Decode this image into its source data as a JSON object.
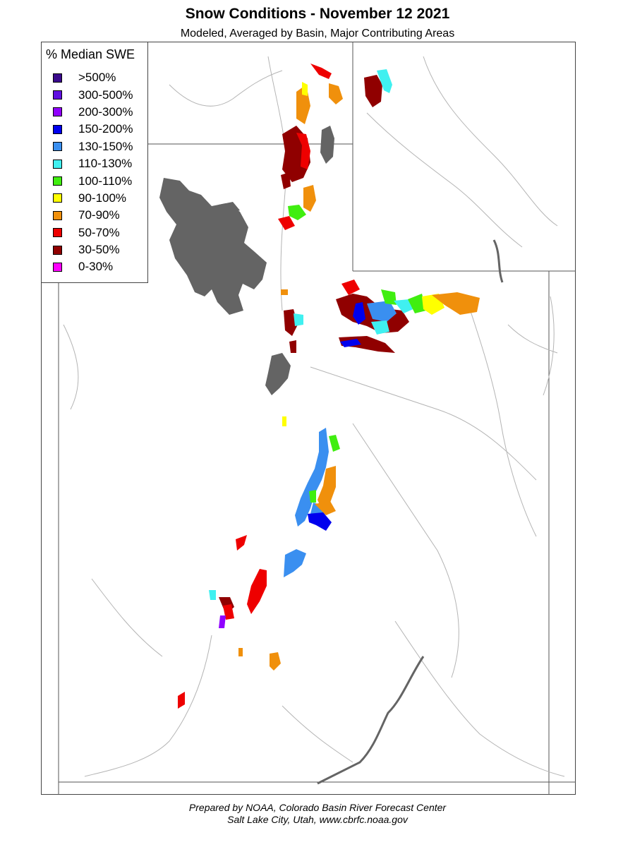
{
  "title": "Snow Conditions - November 12 2021",
  "subtitle": "Modeled, Averaged by Basin, Major Contributing Areas",
  "legend": {
    "title": "% Median SWE",
    "items": [
      {
        "label": ">500%",
        "color": "#3a0a8c"
      },
      {
        "label": "300-500%",
        "color": "#6010e0"
      },
      {
        "label": "200-300%",
        "color": "#9000ff"
      },
      {
        "label": "150-200%",
        "color": "#0000ee"
      },
      {
        "label": "130-150%",
        "color": "#3a8ff0"
      },
      {
        "label": "110-130%",
        "color": "#40f0f0"
      },
      {
        "label": "100-110%",
        "color": "#40ee10"
      },
      {
        "label": "90-100%",
        "color": "#ffff00"
      },
      {
        "label": "70-90%",
        "color": "#f0900c"
      },
      {
        "label": "50-70%",
        "color": "#ee0000"
      },
      {
        "label": "30-50%",
        "color": "#900000"
      },
      {
        "label": "0-30%",
        "color": "#ff00ff"
      }
    ]
  },
  "map": {
    "lake_color": "#646464",
    "river_color": "#b4b4b4",
    "border_color": "#555555"
  },
  "footer": {
    "line1": "Prepared by NOAA, Colorado Basin River Forecast Center",
    "line2": "Salt Lake City, Utah, www.cbrfc.noaa.gov"
  }
}
